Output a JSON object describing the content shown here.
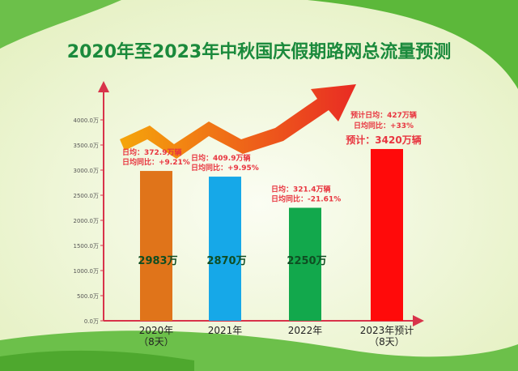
{
  "colors": {
    "title": "#1b8a3c",
    "axis": "#d8334a",
    "annotation": "#e8353f",
    "value_label": "#0f4d22",
    "bars": [
      "#e0741a",
      "#16a8e8",
      "#12a84c",
      "#ff0a0a"
    ]
  },
  "chart_data": {
    "type": "bar",
    "title": "2020年至2023年中秋国庆假期路网总流量预测",
    "categories": [
      [
        "2020年",
        "（8天）"
      ],
      [
        "2021年"
      ],
      [
        "2022年"
      ],
      [
        "2023年预计",
        "（8天）"
      ]
    ],
    "values": [
      2983,
      2870,
      2250,
      3420
    ],
    "value_labels": [
      "2983万",
      "2870万",
      "2250万",
      "3420万辆"
    ],
    "yticks": [
      "0.0万",
      "500.0万",
      "1000.0万",
      "1500.0万",
      "2000.0万",
      "2500.0万",
      "3000.0万",
      "3500.0万",
      "4000.0万"
    ],
    "ylim": [
      0,
      4000
    ],
    "xlabel": "",
    "ylabel": "",
    "annotations": [
      [
        "日均：372.9万辆",
        "日均同比：+9.21%"
      ],
      [
        "日均：409.9万辆",
        "日均同比：+9.95%"
      ],
      [
        "日均：321.4万辆",
        "日均同比：-21.61%"
      ],
      [
        "预计日均：427万辆",
        "日均同比：+33%"
      ]
    ],
    "forecast_prefix": "预计：",
    "grid": false,
    "legend": "none"
  }
}
